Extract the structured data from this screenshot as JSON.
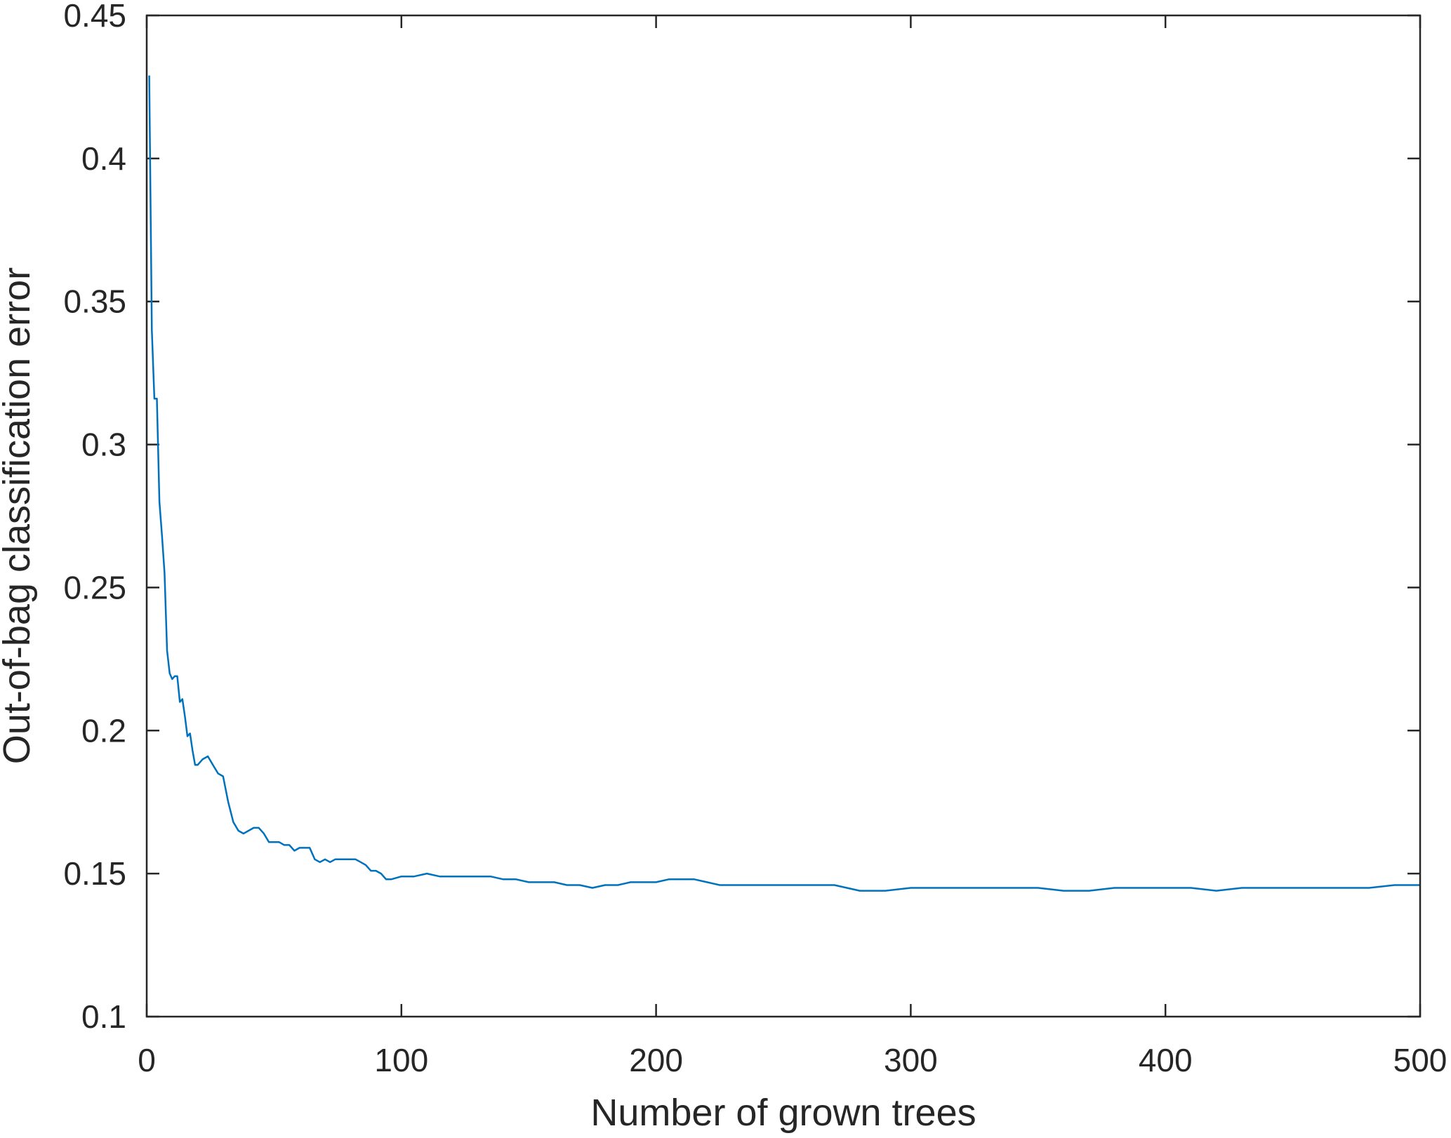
{
  "chart_data": {
    "type": "line",
    "title": "",
    "xlabel": "Number of grown trees",
    "ylabel": "Out-of-bag classification error",
    "xlim": [
      0,
      500
    ],
    "ylim": [
      0.1,
      0.45
    ],
    "xticks": [
      0,
      100,
      200,
      300,
      400,
      500
    ],
    "xtick_labels": [
      "0",
      "100",
      "200",
      "300",
      "400",
      "500"
    ],
    "yticks": [
      0.1,
      0.15,
      0.2,
      0.25,
      0.3,
      0.35,
      0.4,
      0.45
    ],
    "ytick_labels": [
      "0.1",
      "0.15",
      "0.2",
      "0.25",
      "0.3",
      "0.35",
      "0.4",
      "0.45"
    ],
    "grid": false,
    "box": true,
    "line_color": "#0072BD",
    "series": [
      {
        "x": [
          1,
          2,
          3,
          4,
          5,
          6,
          7,
          8,
          9,
          10,
          11,
          12,
          13,
          14,
          15,
          16,
          17,
          18,
          19,
          20,
          22,
          24,
          26,
          28,
          30,
          32,
          34,
          36,
          38,
          40,
          42,
          44,
          46,
          48,
          50,
          52,
          54,
          56,
          58,
          60,
          62,
          64,
          66,
          68,
          70,
          72,
          74,
          76,
          78,
          80,
          82,
          84,
          86,
          88,
          90,
          92,
          94,
          96,
          100,
          105,
          110,
          115,
          120,
          125,
          130,
          135,
          140,
          145,
          150,
          155,
          160,
          165,
          170,
          175,
          180,
          185,
          190,
          195,
          200,
          205,
          210,
          215,
          220,
          225,
          230,
          240,
          250,
          260,
          270,
          280,
          290,
          300,
          310,
          320,
          330,
          340,
          350,
          360,
          370,
          380,
          390,
          400,
          410,
          420,
          430,
          440,
          450,
          460,
          470,
          480,
          490,
          500
        ],
        "y": [
          0.429,
          0.34,
          0.316,
          0.316,
          0.28,
          0.268,
          0.255,
          0.228,
          0.22,
          0.218,
          0.219,
          0.219,
          0.21,
          0.211,
          0.205,
          0.198,
          0.199,
          0.193,
          0.188,
          0.188,
          0.19,
          0.191,
          0.188,
          0.185,
          0.184,
          0.175,
          0.168,
          0.165,
          0.164,
          0.165,
          0.166,
          0.166,
          0.164,
          0.161,
          0.161,
          0.161,
          0.16,
          0.16,
          0.158,
          0.159,
          0.159,
          0.159,
          0.155,
          0.154,
          0.155,
          0.154,
          0.155,
          0.155,
          0.155,
          0.155,
          0.155,
          0.154,
          0.153,
          0.151,
          0.151,
          0.15,
          0.148,
          0.148,
          0.149,
          0.149,
          0.15,
          0.149,
          0.149,
          0.149,
          0.149,
          0.149,
          0.148,
          0.148,
          0.147,
          0.147,
          0.147,
          0.146,
          0.146,
          0.145,
          0.146,
          0.146,
          0.147,
          0.147,
          0.147,
          0.148,
          0.148,
          0.148,
          0.147,
          0.146,
          0.146,
          0.146,
          0.146,
          0.146,
          0.146,
          0.144,
          0.144,
          0.145,
          0.145,
          0.145,
          0.145,
          0.145,
          0.145,
          0.144,
          0.144,
          0.145,
          0.145,
          0.145,
          0.145,
          0.144,
          0.145,
          0.145,
          0.145,
          0.145,
          0.145,
          0.145,
          0.146,
          0.146
        ]
      }
    ]
  }
}
